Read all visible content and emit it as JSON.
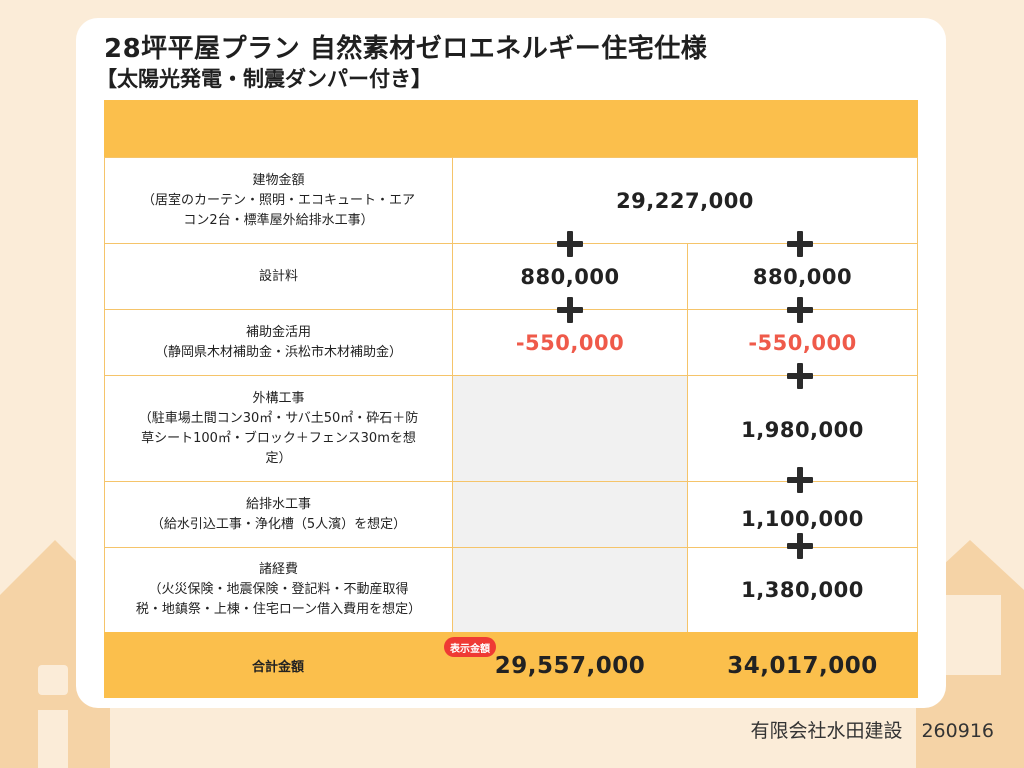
{
  "title": "28坪平屋プラン 自然素材ゼロエネルギー住宅仕様",
  "subtitle": "【太陽光発電・制震ダンパー付き】",
  "rows": [
    {
      "label_lines": [
        "建物金額",
        "（居室のカーテン・照明・エコキュート・エア",
        "コン2台・標準屋外給排水工事）"
      ],
      "col1": "29,227,000",
      "col2": ""
    },
    {
      "label_lines": [
        "設計料"
      ],
      "col1": "880,000",
      "col2": "880,000"
    },
    {
      "label_lines": [
        "補助金活用",
        "（静岡県木材補助金・浜松市木材補助金）"
      ],
      "col1": "-550,000",
      "col2": "-550,000"
    },
    {
      "label_lines": [
        "外構工事",
        "（駐車場土間コン30㎡・サバ土50㎡・砕石＋防",
        "草シート100㎡・ブロック＋フェンス30mを想",
        "定）"
      ],
      "col1": "",
      "col2": "1,980,000"
    },
    {
      "label_lines": [
        "給排水工事",
        "（給水引込工事・浄化槽（5人濱）を想定）"
      ],
      "col1": "",
      "col2": "1,100,000"
    },
    {
      "label_lines": [
        "諸経費",
        "（火災保険・地震保険・登記料・不動産取得",
        "税・地鎮祭・上棟・住宅ローン借入費用を想定）"
      ],
      "col1": "",
      "col2": "1,380,000"
    }
  ],
  "total": {
    "label": "合計金額",
    "badge": "表示金額",
    "col1": "29,557,000",
    "col2": "34,017,000"
  },
  "footer": "有限会社水田建設　260916",
  "colors": {
    "accent": "#fbbf4c",
    "negative": "#ef5a4a",
    "badge": "#ef3a34",
    "background": "#fbecd8"
  }
}
